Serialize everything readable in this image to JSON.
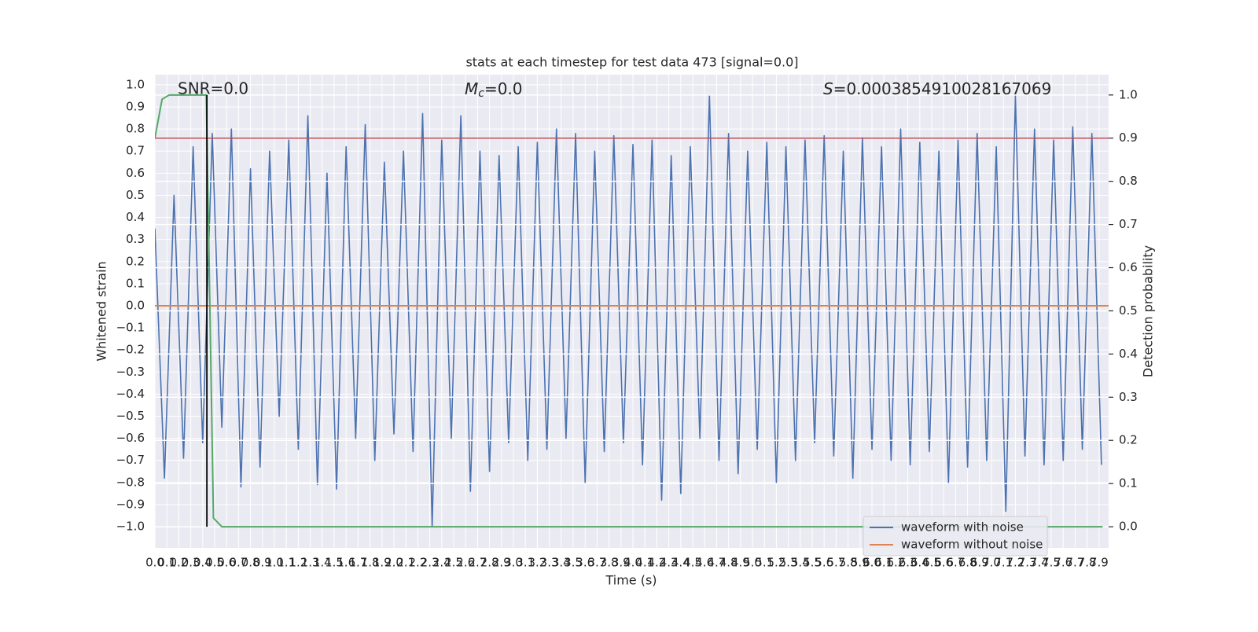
{
  "chart_data": {
    "type": "line",
    "title": "stats at each timestep for test data 473 [signal=0.0]",
    "xlabel": "Time (s)",
    "ylabel": "Whitened strain",
    "y2label": "Detection probability",
    "xlim": [
      0,
      7.98
    ],
    "ylim": [
      -1.096,
      1.046
    ],
    "y2lim": [
      -0.049,
      1.047
    ],
    "grid": true,
    "legend": "lower right",
    "xticks": [
      {
        "value": 0,
        "label": "0.0"
      },
      0.1,
      0.2,
      0.3,
      0.4,
      0.5,
      0.6,
      0.7,
      0.8,
      0.9,
      {
        "value": 1,
        "label": "1.0"
      },
      1.1,
      1.2,
      1.3,
      1.4,
      1.5,
      1.6,
      1.7,
      1.8,
      1.9,
      {
        "value": 2,
        "label": "2.0"
      },
      2.1,
      2.2,
      2.3,
      2.4,
      2.5,
      2.6,
      2.7,
      2.8,
      2.9,
      {
        "value": 3,
        "label": "3.0"
      },
      3.1,
      3.2,
      3.3,
      3.4,
      3.5,
      3.6,
      3.7,
      3.8,
      3.9,
      {
        "value": 4,
        "label": "4.0"
      },
      4.1,
      4.2,
      4.3,
      4.4,
      4.5,
      4.6,
      4.7,
      4.8,
      4.9,
      {
        "value": 5,
        "label": "5.0"
      },
      5.1,
      5.2,
      5.3,
      5.4,
      5.5,
      5.6,
      5.7,
      5.8,
      5.9,
      {
        "value": 6,
        "label": "6.0"
      },
      6.1,
      6.2,
      6.3,
      6.4,
      6.5,
      6.6,
      6.7,
      6.8,
      6.9,
      {
        "value": 7,
        "label": "7.0"
      },
      7.1,
      7.2,
      7.3,
      7.4,
      7.5,
      7.6,
      7.7,
      7.8,
      7.9
    ],
    "yticks": [
      {
        "value": -1,
        "label": "−1.0"
      },
      {
        "value": -0.9,
        "label": "−0.9"
      },
      {
        "value": -0.8,
        "label": "−0.8"
      },
      {
        "value": -0.7,
        "label": "−0.7"
      },
      {
        "value": -0.6,
        "label": "−0.6"
      },
      {
        "value": -0.5,
        "label": "−0.5"
      },
      {
        "value": -0.4,
        "label": "−0.4"
      },
      {
        "value": -0.3,
        "label": "−0.3"
      },
      {
        "value": -0.2,
        "label": "−0.2"
      },
      {
        "value": -0.1,
        "label": "−0.1"
      },
      {
        "value": 0,
        "label": "0.0"
      },
      0.1,
      0.2,
      0.3,
      0.4,
      0.5,
      0.6,
      0.7,
      0.8,
      0.9,
      {
        "value": 1,
        "label": "1.0"
      }
    ],
    "y2ticks": [
      {
        "value": 0,
        "label": "0.0"
      },
      0.1,
      0.2,
      0.3,
      0.4,
      0.5,
      0.6,
      0.7,
      0.8,
      0.9,
      {
        "value": 1,
        "label": "1.0"
      }
    ],
    "annotations": [
      {
        "text": "SNR=0.0"
      },
      {
        "symbol": "M",
        "subscript": "c",
        "text": "=0.0"
      },
      {
        "symbol": "S",
        "text": "=0.0003854910028167069"
      }
    ],
    "series": [
      {
        "name": "waveform with noise",
        "color": "#4c72b0",
        "x": [
          0,
          0.08,
          0.16,
          0.24,
          0.32,
          0.4,
          0.48,
          0.56,
          0.64,
          0.72,
          0.8,
          0.88,
          0.96,
          1.04,
          1.12,
          1.2,
          1.28,
          1.36,
          1.44,
          1.52,
          1.6,
          1.68,
          1.76,
          1.84,
          1.92,
          2,
          2.08,
          2.16,
          2.24,
          2.32,
          2.4,
          2.48,
          2.56,
          2.64,
          2.72,
          2.8,
          2.88,
          2.96,
          3.04,
          3.12,
          3.2,
          3.28,
          3.36,
          3.44,
          3.52,
          3.6,
          3.68,
          3.76,
          3.84,
          3.92,
          4,
          4.08,
          4.16,
          4.24,
          4.32,
          4.4,
          4.48,
          4.56,
          4.64,
          4.72,
          4.8,
          4.88,
          4.96,
          5.04,
          5.12,
          5.2,
          5.28,
          5.36,
          5.44,
          5.52,
          5.6,
          5.68,
          5.76,
          5.84,
          5.92,
          6,
          6.08,
          6.16,
          6.24,
          6.32,
          6.4,
          6.48,
          6.56,
          6.64,
          6.72,
          6.8,
          6.88,
          6.96,
          7.04,
          7.12,
          7.2,
          7.28,
          7.36,
          7.44,
          7.52,
          7.6,
          7.68,
          7.76,
          7.84,
          7.92
        ],
        "values": [
          0.35,
          -0.78,
          0.5,
          -0.69,
          0.72,
          -0.62,
          0.78,
          -0.55,
          0.8,
          -0.82,
          0.62,
          -0.73,
          0.7,
          -0.5,
          0.75,
          -0.65,
          0.86,
          -0.81,
          0.6,
          -0.83,
          0.72,
          -0.6,
          0.82,
          -0.7,
          0.65,
          -0.58,
          0.7,
          -0.66,
          0.87,
          -1.0,
          0.75,
          -0.6,
          0.86,
          -0.84,
          0.7,
          -0.75,
          0.68,
          -0.62,
          0.72,
          -0.7,
          0.74,
          -0.65,
          0.8,
          -0.6,
          0.78,
          -0.8,
          0.7,
          -0.66,
          0.77,
          -0.62,
          0.73,
          -0.72,
          0.75,
          -0.88,
          0.68,
          -0.85,
          0.72,
          -0.6,
          0.95,
          -0.7,
          0.78,
          -0.76,
          0.7,
          -0.65,
          0.74,
          -0.8,
          0.72,
          -0.7,
          0.75,
          -0.62,
          0.77,
          -0.68,
          0.7,
          -0.78,
          0.76,
          -0.65,
          0.72,
          -0.7,
          0.8,
          -0.72,
          0.74,
          -0.66,
          0.7,
          -0.8,
          0.75,
          -0.73,
          0.78,
          -0.7,
          0.72,
          -0.93,
          0.95,
          -0.68,
          0.8,
          -0.72,
          0.75,
          -0.7,
          0.81,
          -0.65,
          0.78,
          -0.72
        ]
      },
      {
        "name": "waveform without noise",
        "color": "#dd8452",
        "x": [
          0,
          7.98
        ],
        "values": [
          0,
          0
        ]
      },
      {
        "color": "#55a868",
        "axis": "y2",
        "x": [
          0,
          0.06,
          0.12,
          0.43,
          0.49,
          0.56,
          7.93
        ],
        "values": [
          0.9,
          0.99,
          1.0,
          1.0,
          0.02,
          0,
          0
        ]
      }
    ],
    "hlines": [
      {
        "y": 0.9,
        "axis": "y2",
        "color": "#c44e52"
      }
    ],
    "vlines": [
      {
        "x": 0.435,
        "ymin": 0,
        "ymax": 1.0,
        "axis": "y2",
        "color": "#000000"
      }
    ]
  }
}
